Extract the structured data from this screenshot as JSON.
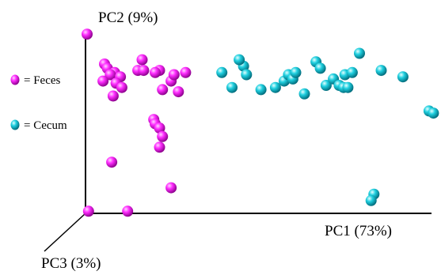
{
  "chart_data": {
    "type": "scatter",
    "projection": "3d",
    "axes": {
      "x": "PC1 (73%)",
      "y": "PC2 (9%)",
      "z": "PC3 (3%)"
    },
    "legend_position": "left",
    "series": [
      {
        "name": "Feces",
        "color": "#ff00ff",
        "points": [
          [
            0.0,
            8.4
          ],
          [
            1.2,
            7.0
          ],
          [
            1.4,
            6.8
          ],
          [
            1.9,
            6.6
          ],
          [
            1.6,
            6.5
          ],
          [
            2.3,
            6.4
          ],
          [
            1.1,
            6.2
          ],
          [
            2.0,
            6.1
          ],
          [
            2.4,
            5.9
          ],
          [
            1.8,
            5.5
          ],
          [
            3.8,
            7.2
          ],
          [
            3.5,
            6.7
          ],
          [
            3.9,
            6.7
          ],
          [
            5.0,
            6.7
          ],
          [
            4.7,
            6.6
          ],
          [
            5.8,
            6.2
          ],
          [
            6.0,
            6.5
          ],
          [
            6.8,
            6.6
          ],
          [
            5.2,
            5.8
          ],
          [
            6.3,
            5.7
          ],
          [
            4.6,
            4.4
          ],
          [
            4.7,
            4.2
          ],
          [
            5.0,
            4.0
          ],
          [
            5.2,
            3.6
          ],
          [
            5.0,
            3.1
          ],
          [
            1.7,
            2.4
          ],
          [
            5.8,
            1.2
          ],
          [
            0.1,
            0.1
          ],
          [
            2.8,
            0.1
          ]
        ]
      },
      {
        "name": "Cecum",
        "color": "#00c8d8",
        "points": [
          [
            9.3,
            6.6
          ],
          [
            10.0,
            5.9
          ],
          [
            10.8,
            6.9
          ],
          [
            10.5,
            7.2
          ],
          [
            11.0,
            6.5
          ],
          [
            12.0,
            5.8
          ],
          [
            13.0,
            5.9
          ],
          [
            13.6,
            6.2
          ],
          [
            13.9,
            6.5
          ],
          [
            14.2,
            6.3
          ],
          [
            14.4,
            6.6
          ],
          [
            15.0,
            5.6
          ],
          [
            15.8,
            7.1
          ],
          [
            16.1,
            6.8
          ],
          [
            16.5,
            6.0
          ],
          [
            17.0,
            6.3
          ],
          [
            17.4,
            6.0
          ],
          [
            17.8,
            6.5
          ],
          [
            17.7,
            5.9
          ],
          [
            18.0,
            5.9
          ],
          [
            18.3,
            6.6
          ],
          [
            18.8,
            7.5
          ],
          [
            20.3,
            6.7
          ],
          [
            21.8,
            6.4
          ],
          [
            23.6,
            4.8
          ],
          [
            23.9,
            4.7
          ],
          [
            19.8,
            0.9
          ],
          [
            19.6,
            0.6
          ]
        ]
      }
    ]
  }
}
